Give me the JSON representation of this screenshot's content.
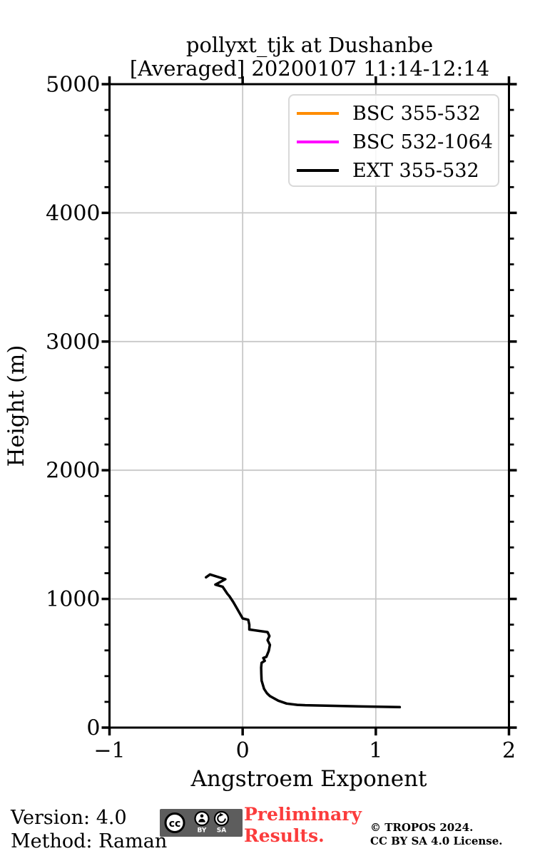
{
  "figure": {
    "title_line1": "pollyxt_tjk at Dushanbe",
    "title_line2": "[Averaged] 20200107 11:14-12:14"
  },
  "colors": {
    "grid": "#c8c8c8",
    "axis": "#000000",
    "legend_border": "#d9d9d9"
  },
  "chart_data": {
    "type": "line",
    "title": "pollyxt_tjk at Dushanbe [Averaged] 20200107 11:14-12:14",
    "xlabel": "Angstroem Exponent",
    "ylabel": "Height (m)",
    "xlim": [
      -1,
      2
    ],
    "ylim": [
      0,
      5000
    ],
    "xticks": [
      -1,
      0,
      1,
      2
    ],
    "xtick_labels": [
      "−1",
      "0",
      "1",
      "2"
    ],
    "yticks": [
      0,
      1000,
      2000,
      3000,
      4000,
      5000
    ],
    "ytick_labels": [
      "0",
      "1000",
      "2000",
      "3000",
      "4000",
      "5000"
    ],
    "y_minor_step": 200,
    "grid": true,
    "legend_position": "upper right",
    "series": [
      {
        "name": "BSC 355-532",
        "color": "#ff8c00",
        "points": []
      },
      {
        "name": "BSC 532-1064",
        "color": "#ff00ff",
        "points": []
      },
      {
        "name": "EXT 355-532",
        "color": "#000000",
        "points": [
          [
            -0.275,
            1168
          ],
          [
            -0.245,
            1190
          ],
          [
            -0.13,
            1153
          ],
          [
            -0.205,
            1111
          ],
          [
            -0.15,
            1094
          ],
          [
            -0.115,
            1040
          ],
          [
            -0.1,
            1022
          ],
          [
            -0.07,
            975
          ],
          [
            -0.045,
            930
          ],
          [
            0.0,
            848
          ],
          [
            0.042,
            838
          ],
          [
            0.05,
            800
          ],
          [
            0.05,
            762
          ],
          [
            0.187,
            742
          ],
          [
            0.201,
            712
          ],
          [
            0.187,
            680
          ],
          [
            0.205,
            643
          ],
          [
            0.196,
            597
          ],
          [
            0.178,
            550
          ],
          [
            0.155,
            541
          ],
          [
            0.166,
            519
          ],
          [
            0.142,
            504
          ],
          [
            0.139,
            467
          ],
          [
            0.14,
            420
          ],
          [
            0.142,
            366
          ],
          [
            0.161,
            301
          ],
          [
            0.182,
            268
          ],
          [
            0.205,
            245
          ],
          [
            0.268,
            209
          ],
          [
            0.33,
            187
          ],
          [
            0.41,
            177
          ],
          [
            0.47,
            174
          ],
          [
            0.69,
            169
          ],
          [
            0.9,
            164
          ],
          [
            1.18,
            159
          ]
        ]
      }
    ]
  },
  "footer": {
    "version_label": "Version: 4.0",
    "method_label": "Method: Raman",
    "preliminary_line1": "Preliminary",
    "preliminary_line2": "Results.",
    "preliminary_color": "#fb3c3c",
    "copyright_line1": "© TROPOS 2024.",
    "copyright_line2": "CC BY SA 4.0 License.",
    "cc_badge": {
      "cc": "cc",
      "by": "BY",
      "sa": "SA"
    }
  }
}
